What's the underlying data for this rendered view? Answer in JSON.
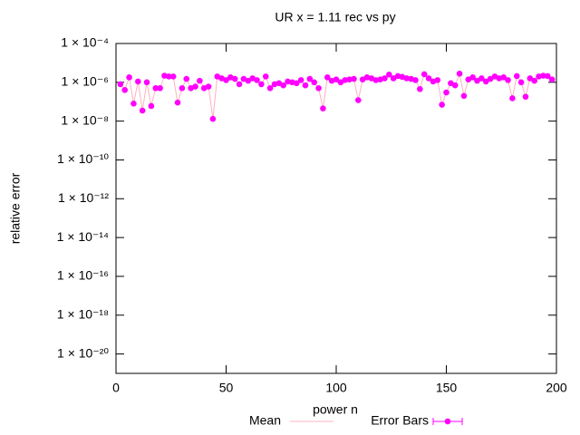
{
  "chart_data": {
    "type": "scatter",
    "title": "UR x = 1.11 rec vs py",
    "x_label": "power n",
    "y_label": "relative error",
    "log_y": true,
    "xlim": [
      0,
      200
    ],
    "xticks": [
      0,
      50,
      100,
      150,
      200
    ],
    "ylim": [
      1e-21,
      0.0001
    ],
    "yticks": [
      {
        "value": 0.0001,
        "label": "1 × 10⁻⁴"
      },
      {
        "value": 1e-06,
        "label": "1 × 10⁻⁶"
      },
      {
        "value": 1e-08,
        "label": "1 × 10⁻⁸"
      },
      {
        "value": 1e-10,
        "label": "1 × 10⁻¹⁰"
      },
      {
        "value": 1e-12,
        "label": "1 × 10⁻¹²"
      },
      {
        "value": 1e-14,
        "label": "1 × 10⁻¹⁴"
      },
      {
        "value": 1e-16,
        "label": "1 × 10⁻¹⁶"
      },
      {
        "value": 1e-18,
        "label": "1 × 10⁻¹⁸"
      },
      {
        "value": 1e-20,
        "label": "1 × 10⁻²⁰"
      }
    ],
    "legend": [
      {
        "name": "Mean",
        "color": "#ffb0c0"
      },
      {
        "name": "Error Bars",
        "color": "#ff00ff"
      }
    ],
    "x": [
      2,
      4,
      6,
      8,
      10,
      12,
      14,
      16,
      18,
      20,
      22,
      24,
      26,
      28,
      30,
      32,
      34,
      36,
      38,
      40,
      42,
      44,
      46,
      48,
      50,
      52,
      54,
      56,
      58,
      60,
      62,
      64,
      66,
      68,
      70,
      72,
      74,
      76,
      78,
      80,
      82,
      84,
      86,
      88,
      90,
      92,
      94,
      96,
      98,
      100,
      102,
      104,
      106,
      108,
      110,
      112,
      114,
      116,
      118,
      120,
      122,
      124,
      126,
      128,
      130,
      132,
      134,
      136,
      138,
      140,
      142,
      144,
      146,
      148,
      150,
      152,
      154,
      156,
      158,
      160,
      162,
      164,
      166,
      168,
      170,
      172,
      174,
      176,
      178,
      180,
      182,
      184,
      186,
      188,
      190,
      192,
      194,
      196,
      198
    ],
    "values": [
      8e-07,
      4e-07,
      1.8e-06,
      8e-08,
      1.1e-06,
      3.5e-08,
      1e-06,
      6e-08,
      5e-07,
      5e-07,
      2.2e-06,
      2e-06,
      2e-06,
      9e-08,
      5e-07,
      1.5e-06,
      5e-07,
      6e-07,
      1.2e-06,
      5e-07,
      6e-07,
      1.3e-08,
      2e-06,
      1.6e-06,
      1.3e-06,
      1.8e-06,
      1.5e-06,
      8e-07,
      1.5e-06,
      1.2e-06,
      1.6e-06,
      1.3e-06,
      8e-07,
      2e-06,
      5e-07,
      8e-07,
      9e-07,
      7e-07,
      1.1e-06,
      1e-06,
      9e-07,
      1.3e-06,
      7e-07,
      1.5e-06,
      1e-06,
      5e-07,
      4.5e-08,
      1.8e-06,
      1.2e-06,
      1.4e-06,
      1e-06,
      1.3e-06,
      1.4e-06,
      1.5e-06,
      1.2e-07,
      1.4e-06,
      1.8e-06,
      1.6e-06,
      1.3e-06,
      1.4e-06,
      1.6e-06,
      2.5e-06,
      1.6e-06,
      2.1e-06,
      1.9e-06,
      1.6e-06,
      1.5e-06,
      1.3e-06,
      4.5e-07,
      2.6e-06,
      1.6e-06,
      1.1e-06,
      1.3e-06,
      7e-08,
      3e-07,
      9e-07,
      7e-07,
      2.8e-06,
      2e-07,
      1.4e-06,
      1.8e-06,
      1.2e-06,
      1.6e-06,
      1.1e-06,
      1.5e-06,
      2e-06,
      1.6e-06,
      1.8e-06,
      1.3e-06,
      1.5e-07,
      2.1e-06,
      1e-06,
      1.8e-07,
      1.6e-06,
      1.2e-06,
      2e-06,
      2.2e-06,
      2.1e-06,
      1.4e-06
    ]
  }
}
